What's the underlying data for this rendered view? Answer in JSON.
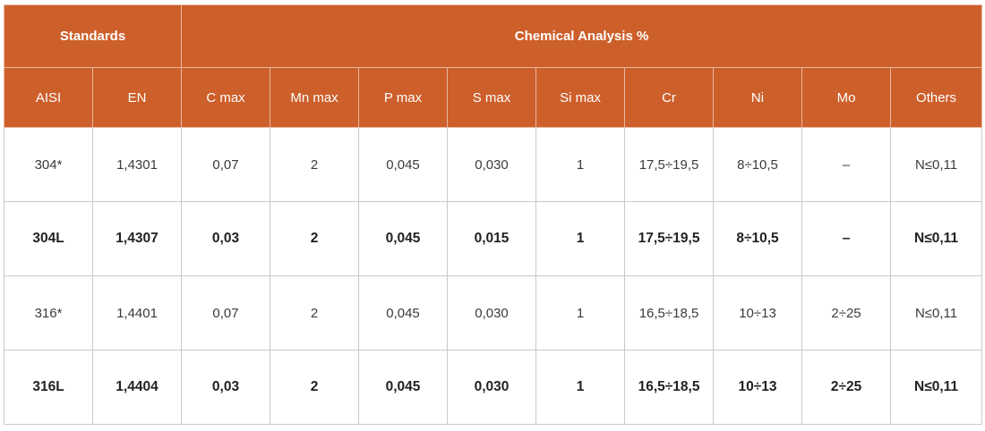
{
  "header": {
    "group_standards": "Standards",
    "group_chemical": "Chemical Analysis %",
    "columns": [
      "AISI",
      "EN",
      "C max",
      "Mn max",
      "P max",
      "S max",
      "Si max",
      "Cr",
      "Ni",
      "Mo",
      "Others"
    ]
  },
  "rows": [
    {
      "bold": false,
      "cells": [
        "304*",
        "1,4301",
        "0,07",
        "2",
        "0,045",
        "0,030",
        "1",
        "17,5÷19,5",
        "8÷10,5",
        "–",
        "N≤0,11"
      ]
    },
    {
      "bold": true,
      "cells": [
        "304L",
        "1,4307",
        "0,03",
        "2",
        "0,045",
        "0,015",
        "1",
        "17,5÷19,5",
        "8÷10,5",
        "–",
        "N≤0,11"
      ]
    },
    {
      "bold": false,
      "cells": [
        "316*",
        "1,4401",
        "0,07",
        "2",
        "0,045",
        "0,030",
        "1",
        "16,5÷18,5",
        "10÷13",
        "2÷25",
        "N≤0,11"
      ]
    },
    {
      "bold": true,
      "cells": [
        "316L",
        "1,4404",
        "0,03",
        "2",
        "0,045",
        "0,030",
        "1",
        "16,5÷18,5",
        "10÷13",
        "2÷25",
        "N≤0,11"
      ]
    }
  ]
}
